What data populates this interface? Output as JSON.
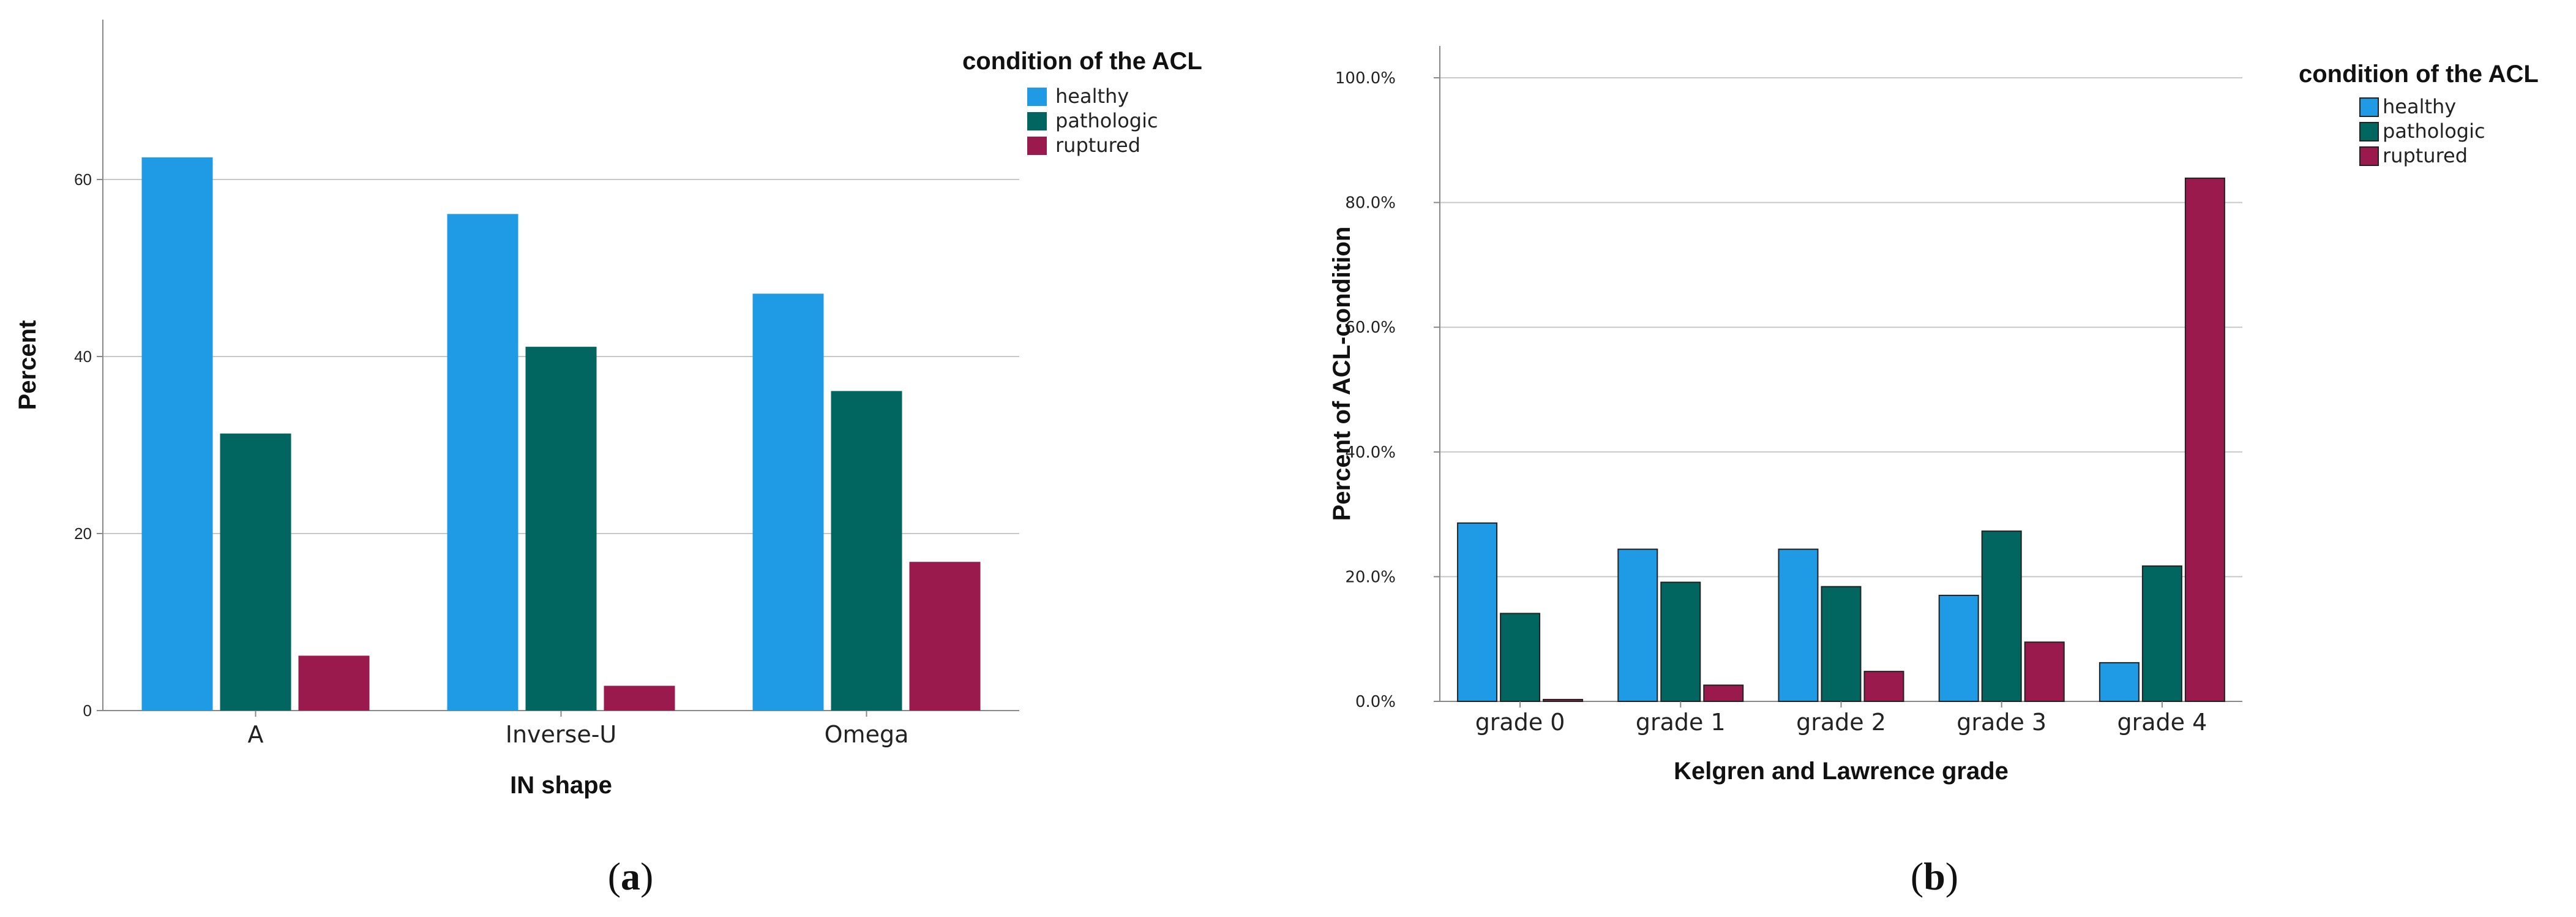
{
  "colors": {
    "healthy": "#1f9be6",
    "pathologic": "#00665f",
    "ruptured": "#9b1a4e",
    "grid": "#c8c8c8",
    "axis": "#888888"
  },
  "chart_data": [
    {
      "id": "a",
      "type": "bar",
      "caption": {
        "open": "(",
        "letter": "a",
        "close": ")"
      },
      "xlabel": "IN shape",
      "ylabel": "Percent",
      "ylim": [
        0,
        78
      ],
      "yticks": [
        0,
        20,
        40,
        60
      ],
      "ytick_labels": [
        "0",
        "20",
        "40",
        "60"
      ],
      "categories": [
        "A",
        "Inverse-U",
        "Omega"
      ],
      "legend": {
        "title": "condition of the ACL",
        "position": "top-right"
      },
      "series": [
        {
          "name": "healthy",
          "values": [
            62.5,
            56.1,
            47.1
          ]
        },
        {
          "name": "pathologic",
          "values": [
            31.3,
            41.1,
            36.1
          ]
        },
        {
          "name": "ruptured",
          "values": [
            6.2,
            2.8,
            16.8
          ]
        }
      ]
    },
    {
      "id": "b",
      "type": "bar",
      "caption": {
        "open": "(",
        "letter": "b",
        "close": ")"
      },
      "xlabel": "Kelgren and Lawrence grade",
      "ylabel": "Percent of ACL-condition",
      "ylim": [
        0,
        105
      ],
      "yticks": [
        0,
        20,
        40,
        60,
        80,
        100
      ],
      "ytick_labels": [
        "0.0%",
        "20.0%",
        "40.0%",
        "60.0%",
        "80.0%",
        "100.0%"
      ],
      "categories": [
        "grade 0",
        "grade 1",
        "grade 2",
        "grade 3",
        "grade 4"
      ],
      "legend": {
        "title": "condition of the ACL",
        "position": "top-right"
      },
      "series": [
        {
          "name": "healthy",
          "values": [
            28.6,
            24.4,
            24.4,
            17.0,
            6.2
          ]
        },
        {
          "name": "pathologic",
          "values": [
            14.1,
            19.1,
            18.4,
            27.3,
            21.7
          ]
        },
        {
          "name": "ruptured",
          "values": [
            0.3,
            2.6,
            4.8,
            9.5,
            83.9
          ]
        }
      ]
    }
  ]
}
